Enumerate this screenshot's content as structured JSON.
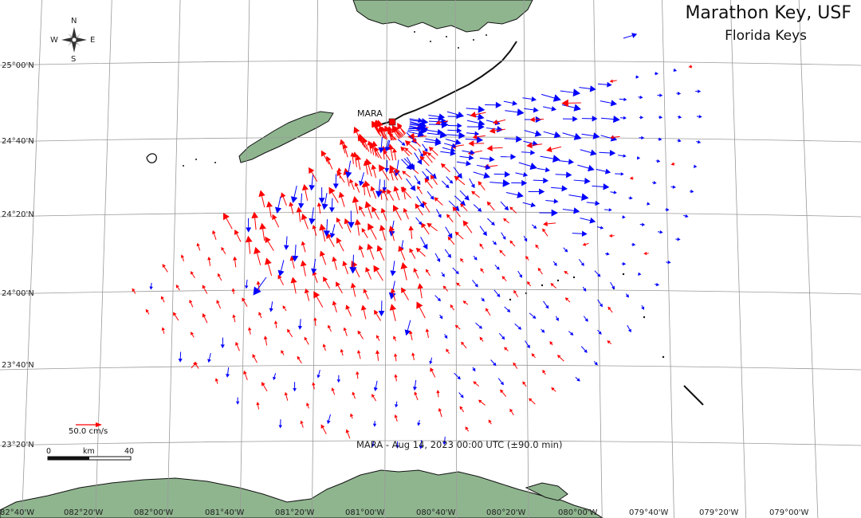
{
  "header": {
    "title": "Marathon Key, USF",
    "subtitle": "Florida Keys"
  },
  "caption": "MARA - Aug 14, 2023 00:00 UTC (±90.0 min)",
  "station": {
    "label": "MARA",
    "color": "#ff0000"
  },
  "compass": {
    "n": "N",
    "s": "S",
    "e": "E",
    "w": "W"
  },
  "scale_bar": {
    "start": "0",
    "mid": "km",
    "end": "40"
  },
  "reference_vector": {
    "label": "50.0 cm/s",
    "color": "#ff0000"
  },
  "lat_labels": [
    "25°00'N",
    "24°40'N",
    "24°20'N",
    "24°00'N",
    "23°40'N",
    "23°20'N"
  ],
  "lon_labels": [
    "82°40'W",
    "082°20'W",
    "082°00'W",
    "081°40'W",
    "081°20'W",
    "081°00'W",
    "080°40'W",
    "080°20'W",
    "080°00'W",
    "079°40'W",
    "079°20'W",
    "079°00'W"
  ],
  "colors": {
    "land": "#8fb58f",
    "coast": "#111111",
    "grid": "#9a9a9a",
    "arrow_red": "#ff0000",
    "arrow_blue": "#0000ff"
  }
}
